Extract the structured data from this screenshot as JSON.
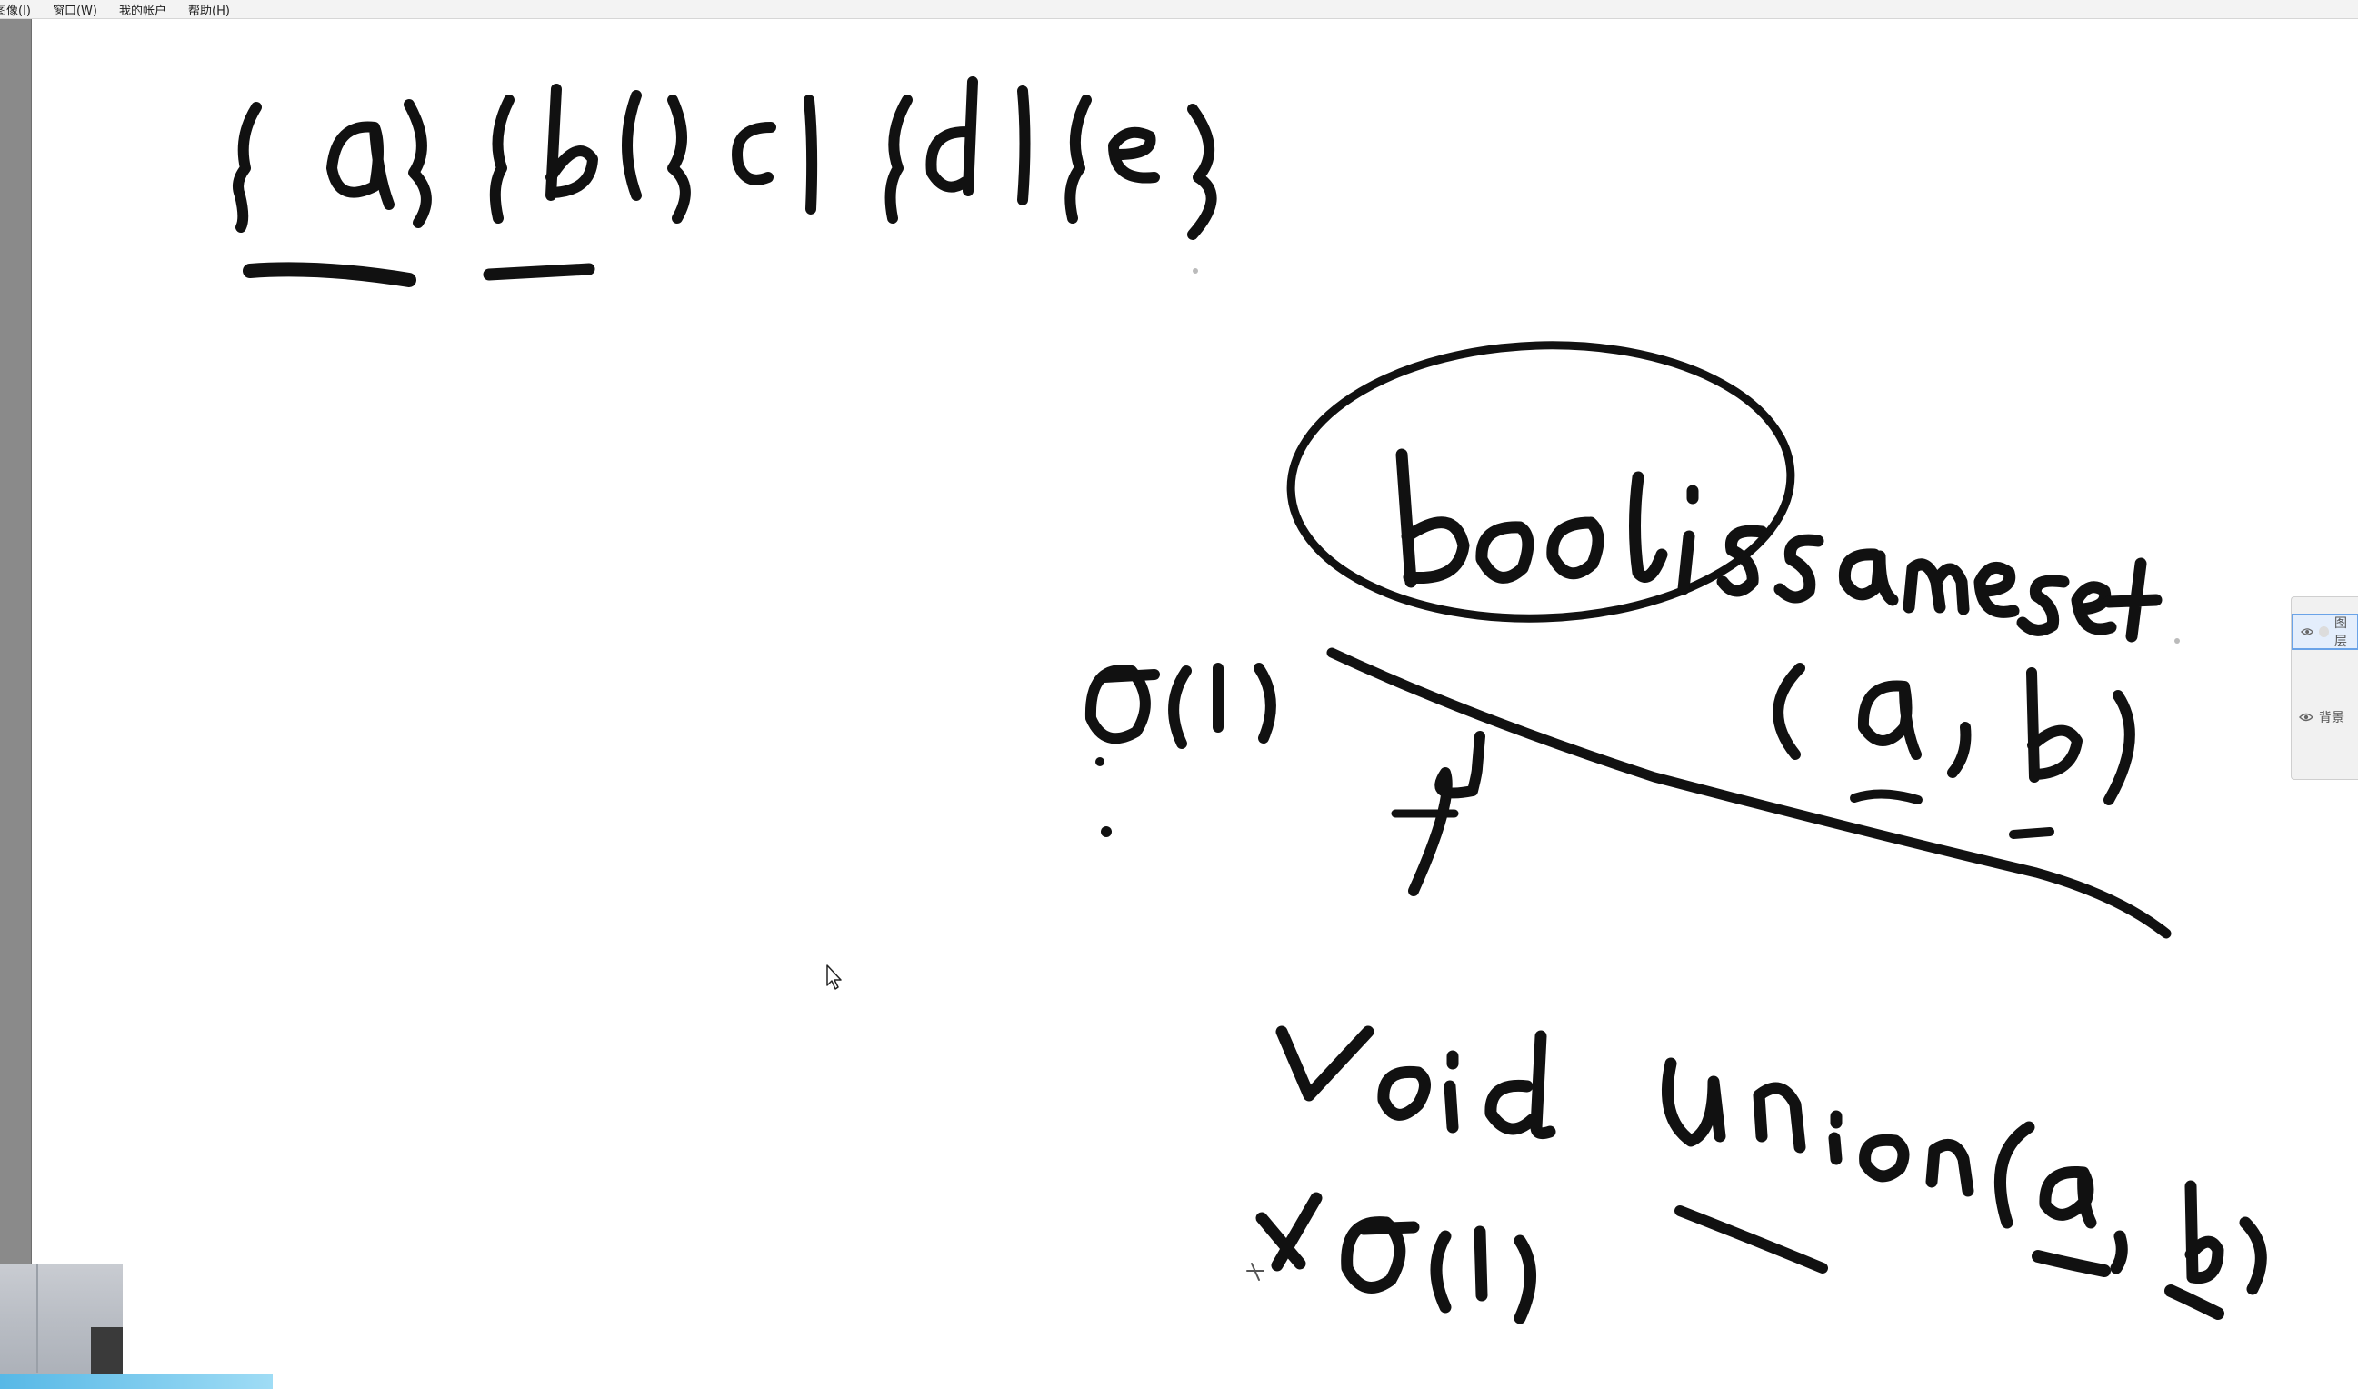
{
  "menubar": {
    "items": [
      {
        "label": "图像(I)"
      },
      {
        "label": "窗口(W)"
      },
      {
        "label": "我的帐户"
      },
      {
        "label": "帮助(H)"
      }
    ]
  },
  "layers_panel": {
    "layers": [
      {
        "label": "图层",
        "visible": true,
        "selected": true
      },
      {
        "label": "背景",
        "visible": true,
        "selected": false
      }
    ]
  },
  "icons": {
    "cursor": "arrow-cursor-icon",
    "visibility": "eye-icon"
  },
  "colors": {
    "ink": "#111111",
    "canvas": "#ffffff",
    "side_strip": "#8a8a8a",
    "selection": "#6aa3e8"
  }
}
